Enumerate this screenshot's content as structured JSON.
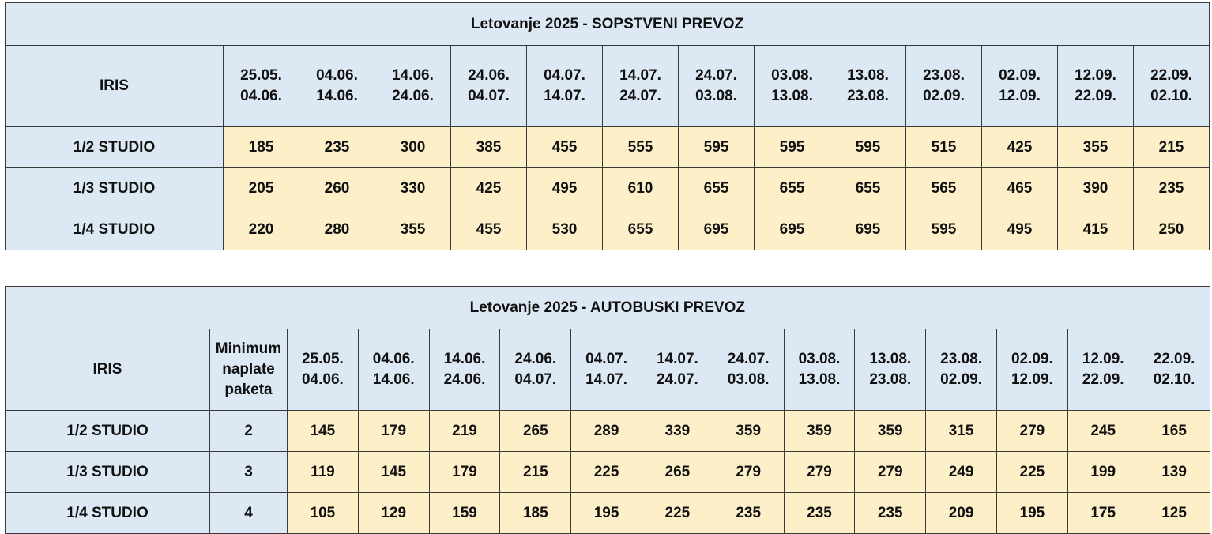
{
  "table1": {
    "title": "Letovanje 2025 - SOPSTVENI PREVOZ",
    "corner_label": "IRIS",
    "periods": [
      [
        "25.05.",
        "04.06."
      ],
      [
        "04.06.",
        "14.06."
      ],
      [
        "14.06.",
        "24.06."
      ],
      [
        "24.06.",
        "04.07."
      ],
      [
        "04.07.",
        "14.07."
      ],
      [
        "14.07.",
        "24.07."
      ],
      [
        "24.07.",
        "03.08."
      ],
      [
        "03.08.",
        "13.08."
      ],
      [
        "13.08.",
        "23.08."
      ],
      [
        "23.08.",
        "02.09."
      ],
      [
        "02.09.",
        "12.09."
      ],
      [
        "12.09.",
        "22.09."
      ],
      [
        "22.09.",
        "02.10."
      ]
    ],
    "rows": [
      {
        "room": "1/2 STUDIO",
        "prices": [
          "185",
          "235",
          "300",
          "385",
          "455",
          "555",
          "595",
          "595",
          "595",
          "515",
          "425",
          "355",
          "215"
        ]
      },
      {
        "room": "1/3 STUDIO",
        "prices": [
          "205",
          "260",
          "330",
          "425",
          "495",
          "610",
          "655",
          "655",
          "655",
          "565",
          "465",
          "390",
          "235"
        ]
      },
      {
        "room": "1/4 STUDIO",
        "prices": [
          "220",
          "280",
          "355",
          "455",
          "530",
          "655",
          "695",
          "695",
          "695",
          "595",
          "495",
          "415",
          "250"
        ]
      }
    ]
  },
  "table2": {
    "title": "Letovanje 2025 - AUTOBUSKI PREVOZ",
    "corner_label": "IRIS",
    "min_label": [
      "Minimum",
      "naplate",
      "paketa"
    ],
    "periods": [
      [
        "25.05.",
        "04.06."
      ],
      [
        "04.06.",
        "14.06."
      ],
      [
        "14.06.",
        "24.06."
      ],
      [
        "24.06.",
        "04.07."
      ],
      [
        "04.07.",
        "14.07."
      ],
      [
        "14.07.",
        "24.07."
      ],
      [
        "24.07.",
        "03.08."
      ],
      [
        "03.08.",
        "13.08."
      ],
      [
        "13.08.",
        "23.08."
      ],
      [
        "23.08.",
        "02.09."
      ],
      [
        "02.09.",
        "12.09."
      ],
      [
        "12.09.",
        "22.09."
      ],
      [
        "22.09.",
        "02.10."
      ]
    ],
    "rows": [
      {
        "room": "1/2 STUDIO",
        "min": "2",
        "prices": [
          "145",
          "179",
          "219",
          "265",
          "289",
          "339",
          "359",
          "359",
          "359",
          "315",
          "279",
          "245",
          "165"
        ]
      },
      {
        "room": "1/3 STUDIO",
        "min": "3",
        "prices": [
          "119",
          "145",
          "179",
          "215",
          "225",
          "265",
          "279",
          "279",
          "279",
          "249",
          "225",
          "199",
          "139"
        ]
      },
      {
        "room": "1/4 STUDIO",
        "min": "4",
        "prices": [
          "105",
          "129",
          "159",
          "185",
          "195",
          "225",
          "235",
          "235",
          "235",
          "209",
          "195",
          "175",
          "125"
        ]
      }
    ]
  },
  "colors": {
    "header_bg": "#dde8f5",
    "value_bg": "#fdf0c8",
    "border": "#3a3a3a"
  }
}
